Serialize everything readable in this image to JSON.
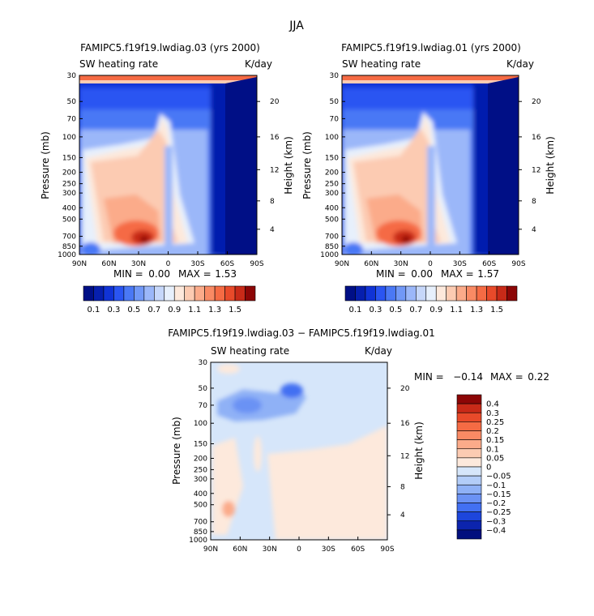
{
  "figure": {
    "title": "JJA"
  },
  "chart_data": [
    {
      "type": "heatmap",
      "title": "FAMIPC5.f19f19.lwdiag.03 (yrs 2000)",
      "left_label": "SW heating rate",
      "right_label": "K/day",
      "xlabel": "",
      "ylabel": "Pressure (mb)",
      "ylabel_right": "Height (km)",
      "x_ticks": [
        "90N",
        "60N",
        "30N",
        "0",
        "30S",
        "60S",
        "90S"
      ],
      "y_ticks": [
        "30",
        "50",
        "70",
        "100",
        "150",
        "200",
        "250",
        "300",
        "400",
        "500",
        "700",
        "850",
        "1000"
      ],
      "y_ticks_right": [
        "20",
        "16",
        "12",
        "8",
        "4"
      ],
      "min_label": "MIN =",
      "min_value": "0.00",
      "max_label": "MAX =",
      "max_value": "1.53",
      "colorbar_labels": [
        "0.1",
        "0.3",
        "0.5",
        "0.7",
        "0.9",
        "1.1",
        "1.3",
        "1.5"
      ],
      "colorbar_colors": [
        "#000f86",
        "#061fae",
        "#1033d6",
        "#2a55f2",
        "#4a78f5",
        "#7198f7",
        "#9bb7f9",
        "#c6d7fa",
        "#e7f0fc",
        "#fde9dc",
        "#fccbb2",
        "#fbab8a",
        "#f98a64",
        "#f56b44",
        "#e84a2a",
        "#c82a18",
        "#8c0606"
      ]
    },
    {
      "type": "heatmap",
      "title": "FAMIPC5.f19f19.lwdiag.01 (yrs 2000)",
      "left_label": "SW heating rate",
      "right_label": "K/day",
      "xlabel": "",
      "ylabel": "Pressure (mb)",
      "ylabel_right": "Height (km)",
      "x_ticks": [
        "90N",
        "60N",
        "30N",
        "0",
        "30S",
        "60S",
        "90S"
      ],
      "y_ticks": [
        "30",
        "50",
        "70",
        "100",
        "150",
        "200",
        "250",
        "300",
        "400",
        "500",
        "700",
        "850",
        "1000"
      ],
      "y_ticks_right": [
        "20",
        "16",
        "12",
        "8",
        "4"
      ],
      "min_label": "MIN =",
      "min_value": "0.00",
      "max_label": "MAX =",
      "max_value": "1.57",
      "colorbar_labels": [
        "0.1",
        "0.3",
        "0.5",
        "0.7",
        "0.9",
        "1.1",
        "1.3",
        "1.5"
      ],
      "colorbar_colors": [
        "#000f86",
        "#061fae",
        "#1033d6",
        "#2a55f2",
        "#4a78f5",
        "#7198f7",
        "#9bb7f9",
        "#c6d7fa",
        "#e7f0fc",
        "#fde9dc",
        "#fccbb2",
        "#fbab8a",
        "#f98a64",
        "#f56b44",
        "#e84a2a",
        "#c82a18",
        "#8c0606"
      ]
    },
    {
      "type": "heatmap",
      "title": "FAMIPC5.f19f19.lwdiag.03 − FAMIPC5.f19f19.lwdiag.01",
      "left_label": "SW heating rate",
      "right_label": "K/day",
      "xlabel": "",
      "ylabel": "Pressure (mb)",
      "ylabel_right": "Height (km)",
      "x_ticks": [
        "90N",
        "60N",
        "30N",
        "0",
        "30S",
        "60S",
        "90S"
      ],
      "y_ticks": [
        "30",
        "50",
        "70",
        "100",
        "150",
        "200",
        "250",
        "300",
        "400",
        "500",
        "700",
        "850",
        "1000"
      ],
      "y_ticks_right": [
        "20",
        "16",
        "12",
        "8",
        "4"
      ],
      "min_label": "MIN =",
      "min_value": "−0.14",
      "max_label": "MAX =",
      "max_value": "0.22",
      "colorbar_labels": [
        "0.4",
        "0.3",
        "0.25",
        "0.2",
        "0.15",
        "0.1",
        "0.05",
        "0",
        "−0.05",
        "−0.1",
        "−0.15",
        "−0.2",
        "−0.25",
        "−0.3",
        "−0.4"
      ],
      "colorbar_colors": [
        "#8c0606",
        "#c82a18",
        "#e84a2a",
        "#f56b44",
        "#f98a64",
        "#fbab8a",
        "#fccbb2",
        "#fde9dc",
        "#d6e6fa",
        "#b3cdf8",
        "#8fb1f6",
        "#6b92f4",
        "#4270f2",
        "#1d46dc",
        "#0c24ad",
        "#020f7e"
      ]
    }
  ]
}
